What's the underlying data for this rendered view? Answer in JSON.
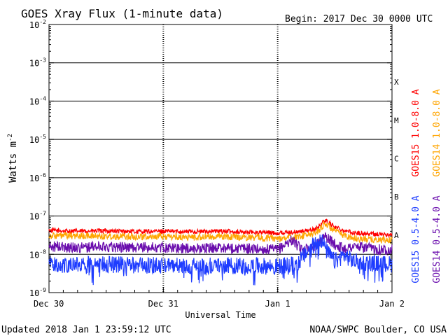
{
  "colors": {
    "goes15_long": "#ff0000",
    "goes14_long": "#ffa500",
    "goes15_short": "#1e3cff",
    "goes14_short": "#6a0dad"
  },
  "chart_data": {
    "type": "line",
    "title": "GOES Xray Flux (1-minute data)",
    "begin_label": "Begin:  2017 Dec 30 0000 UTC",
    "xlabel": "Universal Time",
    "ylabel": "Watts m",
    "ylabel_sup": "-2",
    "y_scale": "log",
    "ylim": [
      1e-09,
      0.01
    ],
    "y_ticks": [
      {
        "base": "10",
        "exp": "-2",
        "value": 0.01
      },
      {
        "base": "10",
        "exp": "-3",
        "value": 0.001
      },
      {
        "base": "10",
        "exp": "-4",
        "value": 0.0001
      },
      {
        "base": "10",
        "exp": "-5",
        "value": 1e-05
      },
      {
        "base": "10",
        "exp": "-6",
        "value": 1e-06
      },
      {
        "base": "10",
        "exp": "-7",
        "value": 1e-07
      },
      {
        "base": "10",
        "exp": "-8",
        "value": 1e-08
      },
      {
        "base": "10",
        "exp": "-9",
        "value": 1e-09
      }
    ],
    "x_unit": "hours since 2017 Dec 30 0000 UTC",
    "xlim": [
      0,
      72
    ],
    "x_ticks": [
      {
        "label": "Dec 30",
        "value": 0
      },
      {
        "label": "Dec 31",
        "value": 24
      },
      {
        "label": "Jan 1",
        "value": 48
      },
      {
        "label": "Jan 2",
        "value": 72
      }
    ],
    "flare_classes": [
      {
        "label": "X",
        "value": 0.0001
      },
      {
        "label": "M",
        "value": 1e-05
      },
      {
        "label": "C",
        "value": 1e-06
      },
      {
        "label": "B",
        "value": 1e-07
      },
      {
        "label": "A",
        "value": 1e-08
      }
    ],
    "grid": true,
    "legend_placement": "right (vertical)",
    "series": [
      {
        "name": "GOES15 1.0-8.0 A",
        "color_key": "goes15_long",
        "x": [
          0,
          6,
          12,
          18,
          24,
          30,
          36,
          42,
          48,
          52,
          56,
          58,
          60,
          62,
          64,
          68,
          72
        ],
        "y": [
          4.2e-08,
          4e-08,
          4.1e-08,
          3.9e-08,
          4e-08,
          3.9e-08,
          4e-08,
          3.8e-08,
          3.6e-08,
          3.8e-08,
          4.5e-08,
          7.8e-08,
          5.2e-08,
          4.2e-08,
          3.6e-08,
          3.4e-08,
          3.2e-08
        ],
        "noise": 0.06
      },
      {
        "name": "GOES14 1.0-8.0 A",
        "color_key": "goes14_long",
        "x": [
          0,
          6,
          12,
          18,
          24,
          30,
          36,
          42,
          48,
          52,
          56,
          58,
          60,
          62,
          64,
          68,
          72
        ],
        "y": [
          3.1e-08,
          3e-08,
          3e-08,
          2.9e-08,
          2.9e-08,
          2.8e-08,
          2.9e-08,
          2.8e-08,
          2.6e-08,
          2.8e-08,
          3.6e-08,
          6.4e-08,
          4e-08,
          3.1e-08,
          2.6e-08,
          2.4e-08,
          2.3e-08
        ],
        "noise": 0.09
      },
      {
        "name": "GOES14 0.5-4.0 A",
        "color_key": "goes14_short",
        "x": [
          0,
          6,
          12,
          18,
          24,
          30,
          36,
          42,
          48,
          51,
          53,
          56,
          58,
          60,
          62,
          64,
          68,
          72
        ],
        "y": [
          1.6e-08,
          1.5e-08,
          1.6e-08,
          1.5e-08,
          1.5e-08,
          1.4e-08,
          1.5e-08,
          1.4e-08,
          1.3e-08,
          2.4e-08,
          1.3e-08,
          1.7e-08,
          3e-08,
          1.8e-08,
          1.4e-08,
          1.6e-08,
          1.4e-08,
          1.3e-08
        ],
        "noise": 0.14
      },
      {
        "name": "GOES15 0.5-4.0 A",
        "color_key": "goes15_short",
        "x": [
          0,
          6,
          12,
          18,
          24,
          30,
          36,
          42,
          48,
          52,
          55,
          57,
          58.5,
          60,
          62,
          64,
          68,
          72
        ],
        "y": [
          5.5e-09,
          5.3e-09,
          5.4e-09,
          5.2e-09,
          5.1e-09,
          5e-09,
          5.1e-09,
          5e-09,
          4.8e-09,
          5.5e-09,
          1.5e-08,
          2.6e-08,
          1.1e-08,
          6.5e-09,
          9.5e-09,
          6.5e-09,
          5.8e-09,
          5.5e-09
        ],
        "noise": 0.22
      }
    ],
    "footer_left": "Updated 2018 Jan  1 23:59:12 UTC",
    "footer_right": "NOAA/SWPC Boulder, CO USA"
  }
}
